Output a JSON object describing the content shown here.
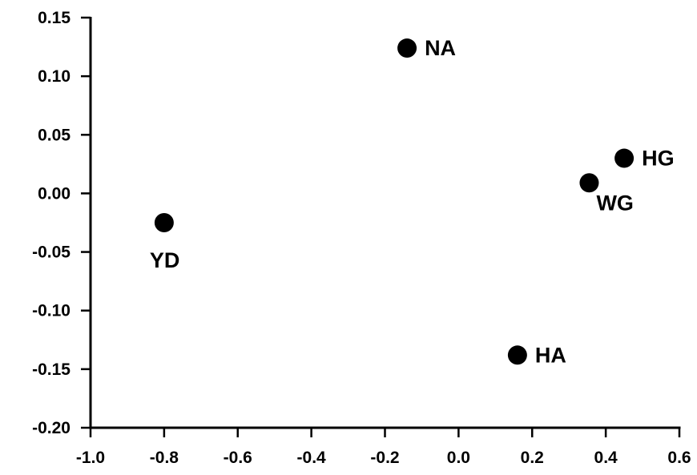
{
  "chart_data": {
    "type": "scatter",
    "title": "",
    "xlabel": "",
    "ylabel": "",
    "xlim": [
      -1.0,
      0.6
    ],
    "ylim": [
      -0.2,
      0.15
    ],
    "x_ticks": [
      -1.0,
      -0.8,
      -0.6,
      -0.4,
      -0.2,
      0.0,
      0.2,
      0.4,
      0.6
    ],
    "x_tick_labels": [
      "-1.0",
      "-0.8",
      "-0.6",
      "-0.4",
      "-0.2",
      "0.0",
      "0.2",
      "0.4",
      "0.6"
    ],
    "y_ticks": [
      -0.2,
      -0.15,
      -0.1,
      -0.05,
      0.0,
      0.05,
      0.1,
      0.15
    ],
    "y_tick_labels": [
      "-0.20",
      "-0.15",
      "-0.10",
      "-0.05",
      "0.00",
      "0.05",
      "0.10",
      "0.15"
    ],
    "grid": false,
    "legend": "none",
    "marker_color": "#000000",
    "points": [
      {
        "label": "NA",
        "x": -0.14,
        "y": 0.124,
        "label_side": "right"
      },
      {
        "label": "HG",
        "x": 0.45,
        "y": 0.03,
        "label_side": "right"
      },
      {
        "label": "WG",
        "x": 0.355,
        "y": 0.009,
        "label_side": "below-right"
      },
      {
        "label": "YD",
        "x": -0.8,
        "y": -0.025,
        "label_side": "below"
      },
      {
        "label": "HA",
        "x": 0.16,
        "y": -0.138,
        "label_side": "right"
      }
    ]
  }
}
